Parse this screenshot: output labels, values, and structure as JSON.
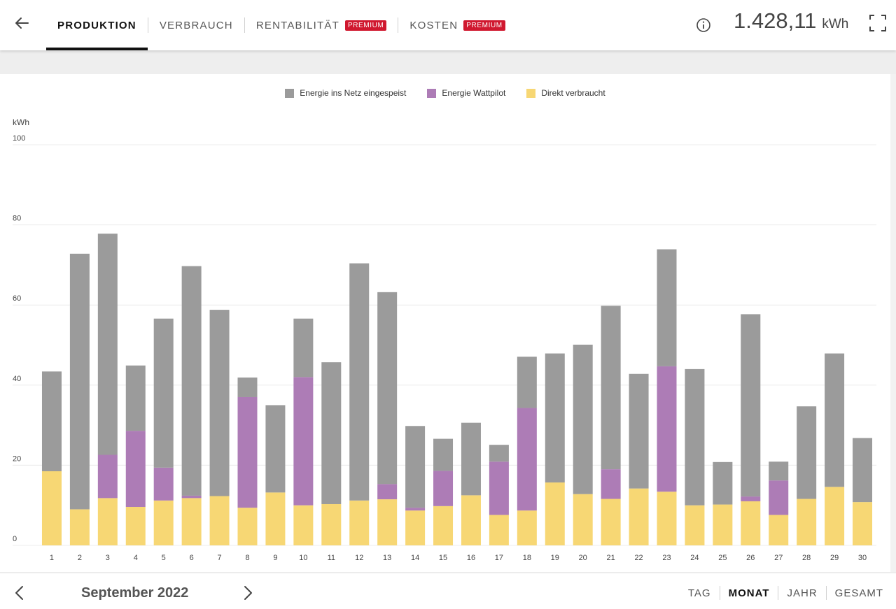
{
  "header": {
    "tabs": [
      {
        "label": "PRODUKTION",
        "active": true,
        "premium": false
      },
      {
        "label": "VERBRAUCH",
        "active": false,
        "premium": false
      },
      {
        "label": "RENTABILITÄT",
        "active": false,
        "premium": true
      },
      {
        "label": "KOSTEN",
        "active": false,
        "premium": true
      }
    ],
    "premium_badge": "PREMIUM",
    "total_value": "1.428,11",
    "total_unit": "kWh",
    "icons": {
      "back": "arrow-left-icon",
      "info": "info-icon",
      "fullscreen": "fullscreen-icon"
    }
  },
  "chart_data": {
    "type": "bar",
    "stacked": true,
    "categories": [
      "1",
      "2",
      "3",
      "4",
      "5",
      "6",
      "7",
      "8",
      "9",
      "10",
      "11",
      "12",
      "13",
      "14",
      "15",
      "16",
      "17",
      "18",
      "19",
      "20",
      "21",
      "22",
      "23",
      "24",
      "25",
      "26",
      "27",
      "28",
      "29",
      "30"
    ],
    "series": [
      {
        "name": "Direkt verbraucht",
        "color": "#f7d774",
        "values": [
          18.5,
          9,
          11.8,
          9.6,
          11.2,
          11.8,
          12.3,
          9.4,
          13.2,
          10,
          10.3,
          11.2,
          11.5,
          8.7,
          9.8,
          12.5,
          7.6,
          8.7,
          15.7,
          12.8,
          11.6,
          14.2,
          13.4,
          10,
          10.2,
          11,
          7.6,
          11.6,
          14.6,
          10.8
        ]
      },
      {
        "name": "Energie Wattpilot",
        "color": "#ad7cb6",
        "values": [
          0,
          0,
          10.8,
          19,
          8.2,
          0.6,
          0,
          27.6,
          0,
          32,
          0,
          0,
          3.8,
          0.7,
          8.8,
          0,
          13.3,
          25.6,
          0,
          0,
          7.4,
          0,
          31.3,
          0,
          0,
          1.2,
          8.6,
          0,
          0,
          0
        ]
      },
      {
        "name": "Energie ins Netz eingespeist",
        "color": "#9b9b9b",
        "values": [
          24.9,
          63.8,
          55.2,
          16.3,
          37.2,
          57.3,
          46.5,
          4.9,
          21.8,
          14.6,
          35.4,
          59.2,
          47.9,
          20.4,
          8,
          18.1,
          4.2,
          12.8,
          32.2,
          37.3,
          40.8,
          28.6,
          29.2,
          34,
          10.6,
          45.5,
          4.7,
          23.1,
          33.3,
          16
        ]
      }
    ],
    "ylabel": "kWh",
    "ylim": [
      0,
      100
    ],
    "yticks": [
      0,
      20,
      40,
      60,
      80,
      100
    ],
    "grid": true,
    "legend_position": "top-center",
    "legend_order": [
      "Energie ins Netz eingespeist",
      "Energie Wattpilot",
      "Direkt verbraucht"
    ]
  },
  "footer": {
    "period_label": "September 2022",
    "range_tabs": [
      {
        "label": "TAG",
        "active": false
      },
      {
        "label": "MONAT",
        "active": true
      },
      {
        "label": "JAHR",
        "active": false
      },
      {
        "label": "GESAMT",
        "active": false
      }
    ],
    "icons": {
      "prev": "chevron-left-icon",
      "next": "chevron-right-icon"
    }
  }
}
